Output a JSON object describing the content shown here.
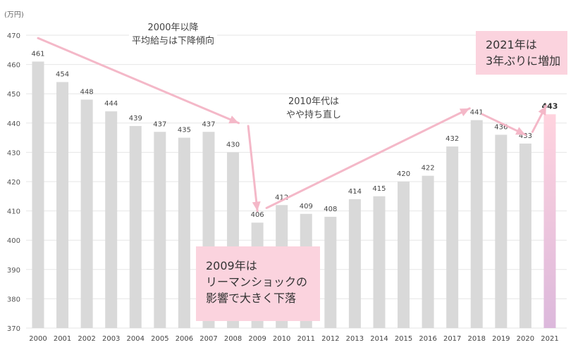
{
  "chart_data": {
    "type": "bar",
    "unit_label": "(万円)",
    "categories": [
      "2000",
      "2001",
      "2002",
      "2003",
      "2004",
      "2005",
      "2006",
      "2007",
      "2008",
      "2009",
      "2010",
      "2011",
      "2012",
      "2013",
      "2014",
      "2015",
      "2016",
      "2017",
      "2018",
      "2019",
      "2020",
      "2021"
    ],
    "values": [
      461,
      454,
      448,
      444,
      439,
      437,
      435,
      437,
      430,
      406,
      412,
      409,
      408,
      414,
      415,
      420,
      422,
      432,
      441,
      436,
      433,
      443
    ],
    "highlight_category": "2021",
    "ylim": [
      370,
      470
    ],
    "yticks": [
      370,
      380,
      390,
      400,
      410,
      420,
      430,
      440,
      450,
      460,
      470
    ],
    "grid": true,
    "colors": {
      "bar": "#d9d9d9",
      "highlight_top": "#ffd3de",
      "highlight_bottom": "#dcb8dc",
      "arrow": "#f4b8c8",
      "grid": "#e6e6e6"
    }
  },
  "annotations": {
    "decline_note": [
      "2000年以降",
      "平均給与は下降傾向"
    ],
    "recovery_note": [
      "2010年代は",
      "やや持ち直し"
    ],
    "crash_box": [
      "2009年は",
      "リーマンショックの",
      "影響で大きく下落"
    ],
    "rise_box": [
      "2021年は",
      "3年ぶりに増加"
    ]
  }
}
